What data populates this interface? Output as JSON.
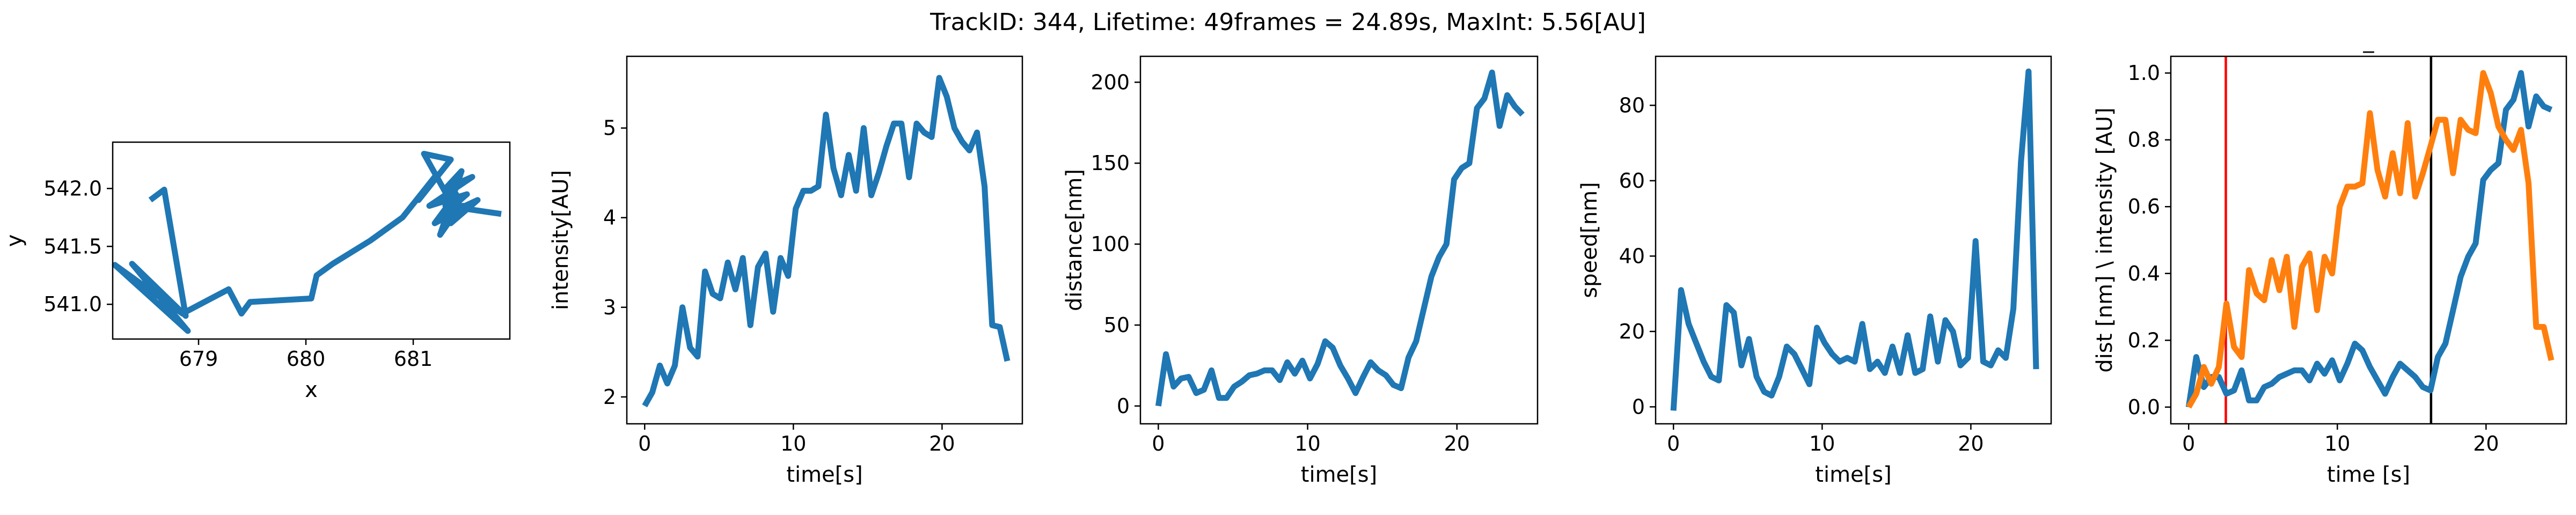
{
  "figure": {
    "suptitle": "TrackID: 344, Lifetime: 49frames = 24.89s, MaxInt: 5.56[AU]"
  },
  "colors": {
    "blue": "#1f77b4",
    "orange": "#ff7f0e",
    "red": "#ff0000",
    "black": "#000000"
  },
  "chart_data": [
    {
      "type": "line",
      "title": "",
      "xlabel": "x",
      "ylabel": "y",
      "xlim": [
        678.2,
        681.9
      ],
      "ylim": [
        540.7,
        542.4
      ],
      "xticks": [
        679,
        680,
        681
      ],
      "xtick_labels": [
        "679",
        "680",
        "681"
      ],
      "yticks": [
        541.0,
        541.5,
        542.0
      ],
      "ytick_labels": [
        "541.0",
        "541.5",
        "542.0"
      ],
      "series": [
        {
          "color": "blue",
          "points": [
            [
              678.55,
              541.9
            ],
            [
              678.68,
              541.99
            ],
            [
              678.88,
              540.9
            ],
            [
              678.38,
              541.35
            ],
            [
              678.9,
              540.77
            ],
            [
              678.22,
              541.34
            ],
            [
              678.85,
              540.92
            ],
            [
              679.28,
              541.13
            ],
            [
              679.4,
              540.92
            ],
            [
              679.48,
              541.02
            ],
            [
              680.05,
              541.05
            ],
            [
              680.1,
              541.25
            ],
            [
              680.25,
              541.35
            ],
            [
              680.6,
              541.55
            ],
            [
              680.9,
              541.75
            ],
            [
              681.2,
              542.1
            ],
            [
              681.05,
              541.9
            ],
            [
              681.35,
              542.25
            ],
            [
              681.1,
              542.3
            ],
            [
              681.4,
              541.8
            ],
            [
              681.25,
              541.6
            ],
            [
              681.45,
              542.15
            ],
            [
              681.3,
              542.0
            ],
            [
              681.55,
              542.1
            ],
            [
              681.15,
              541.85
            ],
            [
              681.5,
              541.95
            ],
            [
              681.25,
              541.75
            ],
            [
              681.6,
              541.9
            ],
            [
              681.35,
              541.7
            ],
            [
              681.4,
              541.95
            ],
            [
              681.2,
              541.7
            ],
            [
              681.5,
              541.85
            ],
            [
              681.3,
              541.85
            ],
            [
              681.82,
              541.78
            ]
          ]
        }
      ]
    },
    {
      "type": "line",
      "title": "",
      "xlabel": "time[s]",
      "ylabel": "intensity[AU]",
      "xlim": [
        -1.2,
        25.4
      ],
      "ylim": [
        1.7,
        5.8
      ],
      "xticks": [
        0,
        10,
        20
      ],
      "xtick_labels": [
        "0",
        "10",
        "20"
      ],
      "yticks": [
        2,
        3,
        4,
        5
      ],
      "ytick_labels": [
        "2",
        "3",
        "4",
        "5"
      ],
      "series": [
        {
          "color": "blue",
          "x": [
            0,
            0.51,
            1.02,
            1.52,
            2.03,
            2.54,
            3.05,
            3.56,
            4.06,
            4.57,
            5.08,
            5.59,
            6.1,
            6.6,
            7.11,
            7.62,
            8.13,
            8.64,
            9.14,
            9.65,
            10.16,
            10.67,
            11.18,
            11.68,
            12.19,
            12.7,
            13.21,
            13.72,
            14.22,
            14.73,
            15.24,
            15.75,
            16.26,
            16.76,
            17.27,
            17.78,
            18.29,
            18.8,
            19.3,
            19.81,
            20.32,
            20.83,
            21.34,
            21.84,
            22.35,
            22.86,
            23.37,
            23.88,
            24.39
          ],
          "y": [
            1.9,
            2.05,
            2.35,
            2.15,
            2.35,
            3.0,
            2.55,
            2.45,
            3.4,
            3.15,
            3.1,
            3.5,
            3.2,
            3.55,
            2.8,
            3.45,
            3.6,
            2.95,
            3.55,
            3.35,
            4.1,
            4.3,
            4.3,
            4.35,
            5.15,
            4.55,
            4.25,
            4.7,
            4.3,
            5.0,
            4.25,
            4.5,
            4.8,
            5.05,
            5.05,
            4.45,
            5.05,
            4.95,
            4.9,
            5.56,
            5.35,
            5.0,
            4.85,
            4.75,
            4.95,
            4.35,
            2.8,
            2.78,
            2.4
          ]
        }
      ]
    },
    {
      "type": "line",
      "title": "",
      "xlabel": "time[s]",
      "ylabel": "distance[nm]",
      "xlim": [
        -1.2,
        25.4
      ],
      "ylim": [
        -11,
        216
      ],
      "xticks": [
        0,
        10,
        20
      ],
      "xtick_labels": [
        "0",
        "10",
        "20"
      ],
      "yticks": [
        0,
        50,
        100,
        150,
        200
      ],
      "ytick_labels": [
        "0",
        "50",
        "100",
        "150",
        "200"
      ],
      "series": [
        {
          "color": "blue",
          "x": [
            0,
            0.51,
            1.02,
            1.52,
            2.03,
            2.54,
            3.05,
            3.56,
            4.06,
            4.57,
            5.08,
            5.59,
            6.1,
            6.6,
            7.11,
            7.62,
            8.13,
            8.64,
            9.14,
            9.65,
            10.16,
            10.67,
            11.18,
            11.68,
            12.19,
            12.7,
            13.21,
            13.72,
            14.22,
            14.73,
            15.24,
            15.75,
            16.26,
            16.76,
            17.27,
            17.78,
            18.29,
            18.8,
            19.3,
            19.81,
            20.32,
            20.83,
            21.34,
            21.84,
            22.35,
            22.86,
            23.37,
            23.88,
            24.39
          ],
          "y": [
            0,
            32,
            12,
            17,
            18,
            8,
            10,
            22,
            5,
            5,
            12,
            15,
            19,
            20,
            22,
            22,
            16,
            27,
            20,
            28,
            17,
            26,
            40,
            36,
            25,
            17,
            8,
            18,
            27,
            22,
            19,
            13,
            11,
            30,
            40,
            60,
            80,
            92,
            100,
            140,
            147,
            150,
            184,
            190,
            206,
            173,
            192,
            185,
            180
          ]
        }
      ]
    },
    {
      "type": "line",
      "title": "",
      "xlabel": "time[s]",
      "ylabel": "speed[nm]",
      "xlim": [
        -1.2,
        25.4
      ],
      "ylim": [
        -4.5,
        93
      ],
      "xticks": [
        0,
        10,
        20
      ],
      "xtick_labels": [
        "0",
        "10",
        "20"
      ],
      "yticks": [
        0,
        20,
        40,
        60,
        80
      ],
      "ytick_labels": [
        "0",
        "20",
        "40",
        "60",
        "80"
      ],
      "series": [
        {
          "color": "blue",
          "x": [
            0,
            0.51,
            1.02,
            1.52,
            2.03,
            2.54,
            3.05,
            3.56,
            4.06,
            4.57,
            5.08,
            5.59,
            6.1,
            6.6,
            7.11,
            7.62,
            8.13,
            8.64,
            9.14,
            9.65,
            10.16,
            10.67,
            11.18,
            11.68,
            12.19,
            12.7,
            13.21,
            13.72,
            14.22,
            14.73,
            15.24,
            15.75,
            16.26,
            16.76,
            17.27,
            17.78,
            18.29,
            18.8,
            19.3,
            19.81,
            20.32,
            20.83,
            21.34,
            21.84,
            22.35,
            22.86,
            23.37,
            23.88,
            24.39
          ],
          "y": [
            -1,
            31,
            22,
            17,
            12,
            8,
            7,
            27,
            25,
            11,
            18,
            8,
            4,
            3,
            8,
            16,
            14,
            10,
            6,
            21,
            17,
            14,
            12,
            13,
            12,
            22,
            10,
            12,
            9,
            16,
            9,
            19,
            9,
            10,
            24,
            12,
            23,
            20,
            11,
            13,
            44,
            12,
            11,
            15,
            13,
            26,
            65,
            89,
            10
          ]
        }
      ]
    },
    {
      "type": "line",
      "title": "_",
      "xlabel": "time [s]",
      "ylabel": "dist [nm] \\ intensity [AU]",
      "xlim": [
        -1.2,
        25.4
      ],
      "ylim": [
        -0.05,
        1.05
      ],
      "xticks": [
        0,
        10,
        20
      ],
      "xtick_labels": [
        "0",
        "10",
        "20"
      ],
      "yticks": [
        0.0,
        0.2,
        0.4,
        0.6,
        0.8,
        1.0
      ],
      "ytick_labels": [
        "0.0",
        "0.2",
        "0.4",
        "0.6",
        "0.8",
        "1.0"
      ],
      "vlines": [
        {
          "x": 2.5,
          "color": "red"
        },
        {
          "x": 16.3,
          "color": "black"
        }
      ],
      "series": [
        {
          "color": "blue",
          "x": [
            0,
            0.51,
            1.02,
            1.52,
            2.03,
            2.54,
            3.05,
            3.56,
            4.06,
            4.57,
            5.08,
            5.59,
            6.1,
            6.6,
            7.11,
            7.62,
            8.13,
            8.64,
            9.14,
            9.65,
            10.16,
            10.67,
            11.18,
            11.68,
            12.19,
            12.7,
            13.21,
            13.72,
            14.22,
            14.73,
            15.24,
            15.75,
            16.26,
            16.76,
            17.27,
            17.78,
            18.29,
            18.8,
            19.3,
            19.81,
            20.32,
            20.83,
            21.34,
            21.84,
            22.35,
            22.86,
            23.37,
            23.88,
            24.39
          ],
          "y": [
            0.0,
            0.15,
            0.06,
            0.09,
            0.09,
            0.04,
            0.05,
            0.11,
            0.02,
            0.02,
            0.06,
            0.07,
            0.09,
            0.1,
            0.11,
            0.11,
            0.08,
            0.13,
            0.1,
            0.14,
            0.08,
            0.13,
            0.19,
            0.17,
            0.12,
            0.08,
            0.04,
            0.09,
            0.13,
            0.11,
            0.09,
            0.06,
            0.05,
            0.15,
            0.19,
            0.29,
            0.39,
            0.45,
            0.49,
            0.68,
            0.71,
            0.73,
            0.89,
            0.92,
            1.0,
            0.84,
            0.93,
            0.9,
            0.89
          ]
        },
        {
          "color": "orange",
          "x": [
            0,
            0.51,
            1.02,
            1.52,
            2.03,
            2.54,
            3.05,
            3.56,
            4.06,
            4.57,
            5.08,
            5.59,
            6.1,
            6.6,
            7.11,
            7.62,
            8.13,
            8.64,
            9.14,
            9.65,
            10.16,
            10.67,
            11.18,
            11.68,
            12.19,
            12.7,
            13.21,
            13.72,
            14.22,
            14.73,
            15.24,
            15.75,
            16.26,
            16.76,
            17.27,
            17.78,
            18.29,
            18.8,
            19.3,
            19.81,
            20.32,
            20.83,
            21.34,
            21.84,
            22.35,
            22.86,
            23.37,
            23.88,
            24.39
          ],
          "y": [
            0.0,
            0.04,
            0.12,
            0.07,
            0.12,
            0.31,
            0.18,
            0.15,
            0.41,
            0.34,
            0.32,
            0.44,
            0.35,
            0.45,
            0.24,
            0.42,
            0.46,
            0.29,
            0.45,
            0.4,
            0.6,
            0.66,
            0.66,
            0.67,
            0.88,
            0.71,
            0.63,
            0.76,
            0.64,
            0.85,
            0.63,
            0.7,
            0.78,
            0.86,
            0.86,
            0.7,
            0.86,
            0.83,
            0.82,
            1.0,
            0.94,
            0.84,
            0.8,
            0.77,
            0.83,
            0.67,
            0.24,
            0.24,
            0.14
          ]
        }
      ]
    }
  ]
}
